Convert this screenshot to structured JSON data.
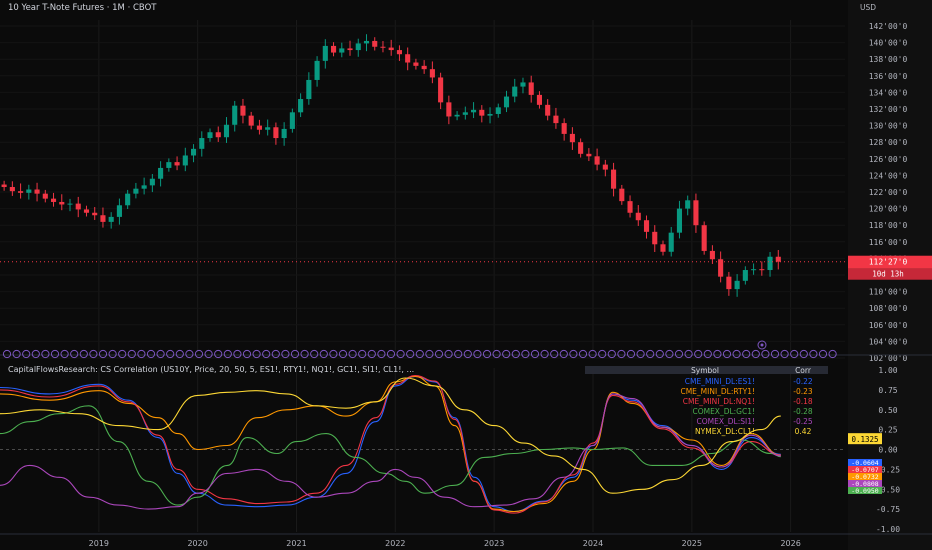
{
  "header": {
    "symbol_title": "10 Year T-Note Futures · 1M · CBOT",
    "currency": "USD"
  },
  "price_pane": {
    "last_price_label": "112'27'0",
    "countdown_label": "10d 13h"
  },
  "indicator_pane": {
    "title": "CapitalFlowsResearch: CS Correlation (US10Y, Price, 20, 50, 5, ES1!, RTY1!, NQ1!, GC1!, SI1!, CL1!, ...",
    "table_header_symbol": "Symbol",
    "table_header_corr": "Corr",
    "table_rows": [
      {
        "symbol": "CME_MINI_DL:ES1!",
        "corr": "-0.22",
        "color": "#2962ff"
      },
      {
        "symbol": "CME_MINI_DL:RTY1!",
        "corr": "-0.23",
        "color": "#ff9800"
      },
      {
        "symbol": "CME_MINI_DL:NQ1!",
        "corr": "-0.18",
        "color": "#f23645"
      },
      {
        "symbol": "COMEX_DL:GC1!",
        "corr": "-0.28",
        "color": "#4caf50"
      },
      {
        "symbol": "COMEX_DL:SI1!",
        "corr": "-0.25",
        "color": "#ab47bc"
      },
      {
        "symbol": "NYMEX_DL:CL1!",
        "corr": "0.42",
        "color": "#fdd835"
      }
    ],
    "marker_label": "0.1325",
    "value_labels": [
      {
        "text": "-0.0604",
        "color": "#2962ff"
      },
      {
        "text": "-0.0707",
        "color": "#f23645"
      },
      {
        "text": "-0.0732",
        "color": "#ff9800"
      },
      {
        "text": "-0.0808",
        "color": "#ab47bc"
      },
      {
        "text": "-0.0950",
        "color": "#4caf50"
      }
    ]
  },
  "chart_data": [
    {
      "type": "candlestick",
      "title": "10 Year T-Note Futures · 1M · CBOT",
      "y_unit": "USD",
      "x_ticks": [
        "2019",
        "2020",
        "2021",
        "2022",
        "2023",
        "2024",
        "2025",
        "2026"
      ],
      "y_ticks": [
        "142'00'0",
        "140'00'0",
        "138'00'0",
        "136'00'0",
        "134'00'0",
        "132'00'0",
        "130'00'0",
        "128'00'0",
        "126'00'0",
        "124'00'0",
        "122'00'0",
        "120'00'0",
        "118'00'0",
        "116'00'0",
        "114'00'0",
        "112'00'0",
        "110'00'0",
        "108'00'0",
        "106'00'0",
        "104'00'0",
        "102'00'0"
      ],
      "ylim": [
        102,
        142
      ],
      "x_start_year": 2018.0,
      "months": 95,
      "closes": [
        122.6,
        122.1,
        121.9,
        122.3,
        121.8,
        121.2,
        120.8,
        120.5,
        120.6,
        119.9,
        119.5,
        119.2,
        118.4,
        119.0,
        120.4,
        121.8,
        122.4,
        122.8,
        123.6,
        124.9,
        125.6,
        125.2,
        126.4,
        127.2,
        128.5,
        129.2,
        128.6,
        130.1,
        132.4,
        131.2,
        130.0,
        129.5,
        129.8,
        128.5,
        129.6,
        131.6,
        133.2,
        135.5,
        137.8,
        139.6,
        138.8,
        139.3,
        139.1,
        139.9,
        140.2,
        139.5,
        139.4,
        139.1,
        138.6,
        137.6,
        137.2,
        136.8,
        135.8,
        132.8,
        131.1,
        131.3,
        131.6,
        131.9,
        131.2,
        131.4,
        132.2,
        133.5,
        134.7,
        135.2,
        133.7,
        132.5,
        131.2,
        130.3,
        129.0,
        128.0,
        126.6,
        126.3,
        125.3,
        124.7,
        122.4,
        120.9,
        119.5,
        118.6,
        117.2,
        115.7,
        114.8,
        117.1,
        120.0,
        121.0,
        118.0,
        114.9,
        113.9,
        111.8,
        110.3,
        111.3,
        112.6,
        112.7,
        112.6,
        114.2,
        113.6
      ],
      "price_axis": {
        "last_price": "112'27'0"
      }
    },
    {
      "type": "line",
      "title": "CapitalFlowsResearch: CS Correlation (US10Y, Price, 20, 50, 5, ES1!, RTY1!, NQ1!, GC1!, SI1!, CL1!, ...",
      "ylim": [
        -1,
        1
      ],
      "y_ticks": [
        "1.00",
        "0.75",
        "0.50",
        "0.25",
        "0.00",
        "-0.25",
        "-0.50",
        "-0.75",
        "-1.00"
      ],
      "series": [
        {
          "name": "CME_MINI_DL:ES1!",
          "color": "#2962ff",
          "x": [
            2018.0,
            2018.5,
            2019.0,
            2019.3,
            2019.6,
            2019.8,
            2020.0,
            2020.3,
            2020.6,
            2020.9,
            2021.2,
            2021.5,
            2021.8,
            2022.0,
            2022.2,
            2022.4,
            2022.6,
            2022.8,
            2023.0,
            2023.2,
            2023.5,
            2023.8,
            2024.0,
            2024.2,
            2024.4,
            2024.7,
            2025.0,
            2025.3,
            2025.6,
            2025.9
          ],
          "values": [
            0.78,
            0.7,
            0.82,
            0.62,
            0.15,
            -0.3,
            -0.55,
            -0.7,
            -0.72,
            -0.7,
            -0.6,
            -0.3,
            0.35,
            0.8,
            0.92,
            0.85,
            0.4,
            -0.35,
            -0.72,
            -0.78,
            -0.65,
            -0.35,
            0.05,
            0.7,
            0.62,
            0.3,
            0.05,
            -0.25,
            0.15,
            -0.06
          ]
        },
        {
          "name": "CME_MINI_DL:RTY1!",
          "color": "#ff9800",
          "x": [
            2018.0,
            2018.5,
            2019.0,
            2019.3,
            2019.6,
            2019.8,
            2020.0,
            2020.3,
            2020.6,
            2020.9,
            2021.2,
            2021.5,
            2021.8,
            2022.0,
            2022.2,
            2022.4,
            2022.6,
            2022.8,
            2023.0,
            2023.2,
            2023.5,
            2023.8,
            2024.0,
            2024.2,
            2024.4,
            2024.7,
            2025.0,
            2025.3,
            2025.6,
            2025.9
          ],
          "values": [
            0.7,
            0.62,
            0.74,
            0.58,
            0.4,
            0.2,
            0.0,
            0.05,
            0.4,
            0.5,
            0.55,
            0.42,
            0.6,
            0.85,
            0.92,
            0.8,
            0.3,
            -0.4,
            -0.75,
            -0.78,
            -0.68,
            -0.4,
            0.0,
            0.72,
            0.58,
            0.28,
            0.12,
            -0.2,
            0.2,
            -0.07
          ]
        },
        {
          "name": "CME_MINI_DL:NQ1!",
          "color": "#f23645",
          "x": [
            2018.0,
            2018.5,
            2019.0,
            2019.3,
            2019.6,
            2019.8,
            2020.0,
            2020.3,
            2020.6,
            2020.9,
            2021.2,
            2021.5,
            2021.8,
            2022.0,
            2022.2,
            2022.4,
            2022.6,
            2022.8,
            2023.0,
            2023.2,
            2023.5,
            2023.8,
            2024.0,
            2024.2,
            2024.4,
            2024.7,
            2025.0,
            2025.3,
            2025.6,
            2025.9
          ],
          "values": [
            0.75,
            0.66,
            0.8,
            0.6,
            0.18,
            -0.25,
            -0.5,
            -0.62,
            -0.68,
            -0.66,
            -0.55,
            -0.2,
            0.4,
            0.82,
            0.93,
            0.86,
            0.38,
            -0.4,
            -0.76,
            -0.8,
            -0.66,
            -0.32,
            0.08,
            0.68,
            0.6,
            0.26,
            0.02,
            -0.22,
            0.1,
            -0.07
          ]
        },
        {
          "name": "COMEX_DL:GC1!",
          "color": "#4caf50",
          "x": [
            2018.0,
            2018.3,
            2018.6,
            2018.9,
            2019.2,
            2019.5,
            2019.8,
            2020.0,
            2020.3,
            2020.5,
            2020.8,
            2021.0,
            2021.3,
            2021.6,
            2021.9,
            2022.1,
            2022.3,
            2022.6,
            2022.9,
            2023.2,
            2023.5,
            2023.8,
            2024.0,
            2024.3,
            2024.6,
            2024.9,
            2025.2,
            2025.5,
            2025.8,
            2025.9
          ],
          "values": [
            0.2,
            0.35,
            0.45,
            0.55,
            0.1,
            -0.4,
            -0.7,
            -0.6,
            -0.2,
            0.15,
            -0.05,
            0.1,
            0.2,
            -0.1,
            -0.3,
            -0.4,
            -0.55,
            -0.45,
            -0.1,
            -0.05,
            0.0,
            0.02,
            0.0,
            0.02,
            -0.2,
            -0.2,
            -0.05,
            0.12,
            -0.05,
            -0.09
          ]
        },
        {
          "name": "COMEX_DL:SI1!",
          "color": "#ab47bc",
          "x": [
            2018.0,
            2018.3,
            2018.6,
            2018.9,
            2019.2,
            2019.5,
            2019.8,
            2020.0,
            2020.3,
            2020.6,
            2020.9,
            2021.2,
            2021.5,
            2021.8,
            2022.0,
            2022.2,
            2022.5,
            2022.8,
            2023.1,
            2023.4,
            2023.7,
            2024.0,
            2024.2,
            2024.4,
            2024.7,
            2025.0,
            2025.3,
            2025.6,
            2025.9
          ],
          "values": [
            -0.45,
            -0.2,
            -0.35,
            -0.6,
            -0.7,
            -0.75,
            -0.72,
            -0.55,
            -0.3,
            -0.25,
            -0.4,
            -0.6,
            -0.55,
            -0.4,
            -0.25,
            -0.35,
            -0.6,
            -0.72,
            -0.7,
            -0.62,
            -0.35,
            0.05,
            0.7,
            0.64,
            0.28,
            0.05,
            -0.22,
            0.18,
            -0.08
          ]
        },
        {
          "name": "NYMEX_DL:CL1!",
          "color": "#fdd835",
          "x": [
            2018.0,
            2018.4,
            2018.8,
            2019.2,
            2019.6,
            2020.0,
            2020.3,
            2020.6,
            2020.9,
            2021.2,
            2021.5,
            2021.8,
            2022.1,
            2022.4,
            2022.7,
            2023.0,
            2023.3,
            2023.6,
            2023.9,
            2024.2,
            2024.5,
            2024.8,
            2025.1,
            2025.4,
            2025.7,
            2025.9
          ],
          "values": [
            0.45,
            0.5,
            0.45,
            0.3,
            0.25,
            0.68,
            0.72,
            0.74,
            0.7,
            0.55,
            0.52,
            0.6,
            0.9,
            0.8,
            0.5,
            0.3,
            0.08,
            -0.08,
            -0.25,
            -0.55,
            -0.5,
            -0.38,
            -0.2,
            0.1,
            0.25,
            0.42
          ]
        }
      ]
    }
  ]
}
